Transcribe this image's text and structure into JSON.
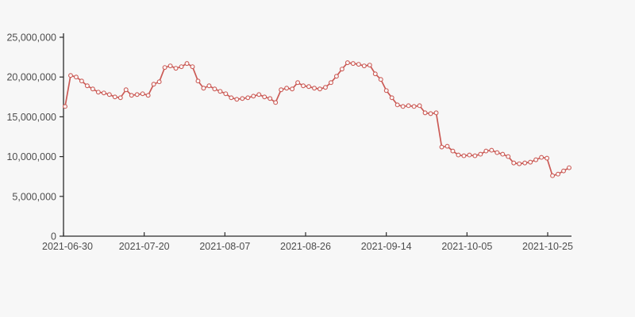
{
  "page": {
    "background_color": "#f7f7f7"
  },
  "chart_data": {
    "type": "line",
    "title": "",
    "xlabel": "",
    "ylabel": "",
    "legend": "none",
    "grid": false,
    "axis_color": "#2b2b2b",
    "label_color": "#4d4d4d",
    "ylim": [
      0,
      25000000
    ],
    "y_tick_values": [
      0,
      5000000,
      10000000,
      15000000,
      20000000,
      25000000
    ],
    "y_tick_labels": [
      "0",
      "5,000,000",
      "10,000,000",
      "15,000,000",
      "20,000,000",
      "25,000,000"
    ],
    "x_tick_labels": [
      "2021-06-30",
      "2021-07-20",
      "2021-08-07",
      "2021-08-26",
      "2021-09-14",
      "2021-10-05",
      "2021-10-25"
    ],
    "series": [
      {
        "name": "value",
        "color": "#cb5a55",
        "marker": "open-circle",
        "marker_fill": "#fbfafa",
        "values": [
          16300000,
          20200000,
          20000000,
          19500000,
          18900000,
          18500000,
          18100000,
          18000000,
          17800000,
          17500000,
          17400000,
          18400000,
          17700000,
          17800000,
          17900000,
          17700000,
          19100000,
          19400000,
          21200000,
          21400000,
          21100000,
          21300000,
          21700000,
          21300000,
          19500000,
          18600000,
          18900000,
          18500000,
          18200000,
          17900000,
          17400000,
          17200000,
          17300000,
          17400000,
          17600000,
          17800000,
          17500000,
          17300000,
          16800000,
          18400000,
          18600000,
          18500000,
          19300000,
          18900000,
          18800000,
          18600000,
          18500000,
          18700000,
          19300000,
          20100000,
          21000000,
          21800000,
          21700000,
          21600000,
          21400000,
          21500000,
          20400000,
          19700000,
          18300000,
          17400000,
          16500000,
          16300000,
          16400000,
          16300000,
          16400000,
          15500000,
          15400000,
          15500000,
          11200000,
          11300000,
          10700000,
          10200000,
          10100000,
          10200000,
          10100000,
          10300000,
          10700000,
          10800000,
          10500000,
          10300000,
          10000000,
          9200000,
          9100000,
          9200000,
          9300000,
          9600000,
          9900000,
          9800000,
          7600000,
          7800000,
          8200000,
          8600000
        ]
      }
    ]
  }
}
